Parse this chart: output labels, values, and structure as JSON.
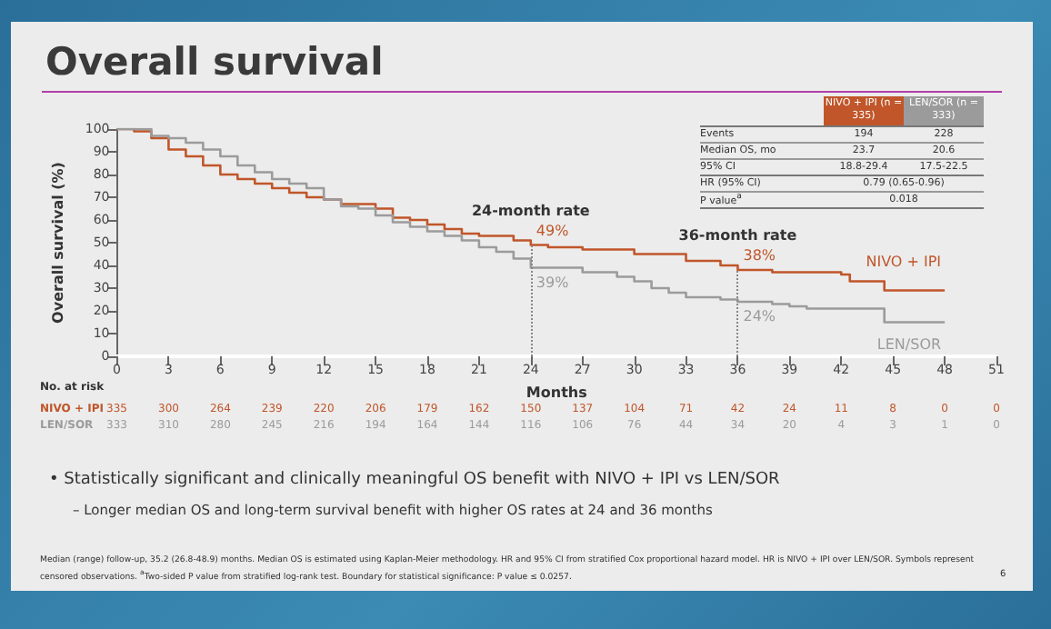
{
  "chart_data": {
    "type": "step",
    "title": "Overall survival",
    "xlabel": "Months",
    "ylabel": "Overall survival (%)",
    "xlim": [
      0,
      51
    ],
    "xticks": [
      0,
      3,
      6,
      9,
      12,
      15,
      18,
      21,
      24,
      27,
      30,
      33,
      36,
      39,
      42,
      45,
      48,
      51
    ],
    "ylim": [
      0,
      100
    ],
    "yticks": [
      0,
      10,
      20,
      30,
      40,
      50,
      60,
      70,
      80,
      90,
      100
    ],
    "legend": false,
    "grid": false,
    "line_style": "solid",
    "series": [
      {
        "name": "NIVO + IPI",
        "color": "#c0562a",
        "x": [
          0,
          1,
          2,
          3,
          4,
          5,
          6,
          7,
          8,
          9,
          10,
          11,
          12,
          13,
          14,
          15,
          16,
          17,
          18,
          19,
          20,
          21,
          22,
          23,
          24,
          25,
          27,
          30,
          33,
          35,
          36,
          38,
          42,
          42.5,
          44.5,
          48
        ],
        "values": [
          100,
          99,
          96,
          91,
          88,
          84,
          80,
          78,
          76,
          74,
          72,
          70,
          69,
          67,
          67,
          65,
          61,
          60,
          58,
          56,
          54,
          53,
          53,
          51,
          49,
          48,
          47,
          45,
          42,
          40,
          38,
          37,
          36,
          33,
          29,
          29
        ]
      },
      {
        "name": "LEN/SOR",
        "color": "#9b9b9b",
        "x": [
          0,
          2,
          3,
          4,
          5,
          6,
          7,
          8,
          9,
          10,
          11,
          12,
          13,
          14,
          15,
          16,
          17,
          18,
          19,
          20,
          21,
          22,
          23,
          24,
          27,
          29,
          30,
          31,
          32,
          33,
          35,
          36,
          38,
          39,
          40,
          42,
          44.5,
          48
        ],
        "values": [
          100,
          97,
          96,
          94,
          91,
          88,
          84,
          81,
          78,
          76,
          74,
          69,
          66,
          65,
          62,
          59,
          57,
          55,
          53,
          51,
          48,
          46,
          43,
          39,
          37,
          35,
          33,
          30,
          28,
          26,
          25,
          24,
          23,
          22,
          21,
          21,
          15,
          15
        ]
      }
    ],
    "ref_lines": [
      {
        "axis": "x",
        "value": 24,
        "color": "#888888",
        "line_style": "dotted"
      },
      {
        "axis": "x",
        "value": 36,
        "color": "#888888",
        "line_style": "dotted"
      }
    ],
    "annotations": [
      "24-month rate",
      "36-month rate",
      "49%",
      "39%",
      "38%",
      "24%",
      "NIVO + IPI (n = 335)",
      "LEN/SOR (n = 333)",
      "Events",
      "194",
      "228",
      "Median OS, mo",
      "23.7",
      "20.6",
      "95% CI",
      "18.8-29.4",
      "17.5-22.5",
      "HR (95% CI)",
      "0.79 (0.65-0.96)",
      "P value$^{a}$",
      "0.018",
      "No. at risk",
      "NIVO + IPI",
      "335",
      "300",
      "264",
      "239",
      "220",
      "206",
      "179",
      "162",
      "150",
      "137",
      "104",
      "71",
      "42",
      "24",
      "11",
      "8",
      "0",
      "0",
      "LEN/SOR",
      "333",
      "310",
      "280",
      "245",
      "216",
      "194",
      "164",
      "144",
      "116",
      "106",
      "76",
      "44",
      "34",
      "20",
      "4",
      "3",
      "1",
      "0",
      "• Statistically significant and clinically meaningful OS benefit with NIVO + IPI vs LEN/SOR",
      "– Longer median OS and long-term survival benefit with higher OS rates at 24 and 36 months",
      "Median (range) follow-up, 35.2 (26.8-48.9) months. Median OS is estimated using Kaplan-Meier methodology. HR and 95% CI from stratified Cox proportional hazard model. HR is NIVO + IPI over LEN/SOR. Symbols represent censored observations. $^{a}$Two-sided P value from stratified log-rank test. Boundary for statistical significance: P value ≤ 0.0257.",
      "6"
    ]
  }
}
